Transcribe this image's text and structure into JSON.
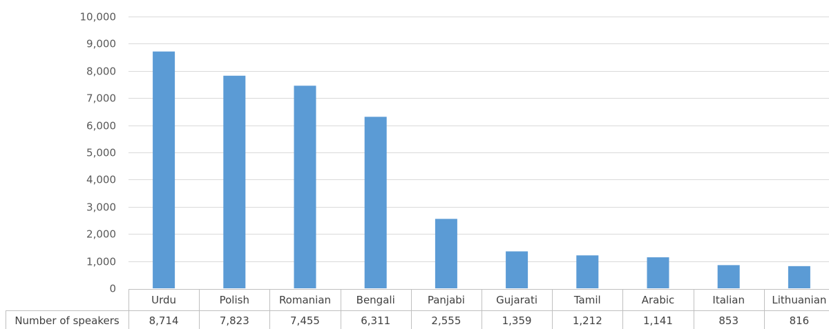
{
  "chart_data": {
    "type": "bar",
    "categories": [
      "Urdu",
      "Polish",
      "Romanian",
      "Bengali",
      "Panjabi",
      "Gujarati",
      "Tamil",
      "Arabic",
      "Italian",
      "Lithuanian"
    ],
    "series": [
      {
        "name": "Number of speakers",
        "values": [
          8714,
          7823,
          7455,
          6311,
          2555,
          1359,
          1212,
          1141,
          853,
          816
        ],
        "labels": [
          "8,714",
          "7,823",
          "7,455",
          "6,311",
          "2,555",
          "1,359",
          "1,212",
          "1,141",
          "853",
          "816"
        ]
      }
    ],
    "ylim": [
      0,
      10000
    ],
    "yticks": [
      0,
      1000,
      2000,
      3000,
      4000,
      5000,
      6000,
      7000,
      8000,
      9000,
      10000
    ],
    "ytick_labels": [
      "0",
      "1,000",
      "2,000",
      "3,000",
      "4,000",
      "5,000",
      "6,000",
      "7,000",
      "8,000",
      "9,000",
      "10,000"
    ],
    "grid": true,
    "bar_color": "#5b9bd5",
    "data_table": true
  }
}
